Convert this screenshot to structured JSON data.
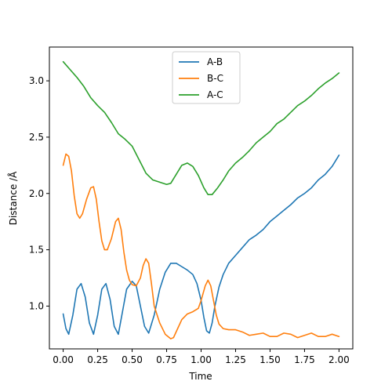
{
  "chart_data": {
    "type": "line",
    "title": "",
    "xlabel": "Time",
    "ylabel": "Distance /Å",
    "xlim": [
      -0.1,
      2.1
    ],
    "ylim": [
      0.62,
      3.3
    ],
    "xticks": [
      0.0,
      0.25,
      0.5,
      0.75,
      1.0,
      1.25,
      1.5,
      1.75,
      2.0
    ],
    "xtick_labels": [
      "0.00",
      "0.25",
      "0.50",
      "0.75",
      "1.00",
      "1.25",
      "1.50",
      "1.75",
      "2.00"
    ],
    "yticks": [
      1.0,
      1.5,
      2.0,
      2.5,
      3.0
    ],
    "ytick_labels": [
      "1.0",
      "1.5",
      "2.0",
      "2.5",
      "3.0"
    ],
    "grid": false,
    "legend": {
      "placement": "upper-center"
    },
    "series": [
      {
        "name": "A-B",
        "color": "#1f77b4",
        "points": [
          [
            0.0,
            0.93
          ],
          [
            0.02,
            0.8
          ],
          [
            0.04,
            0.75
          ],
          [
            0.07,
            0.92
          ],
          [
            0.1,
            1.15
          ],
          [
            0.13,
            1.2
          ],
          [
            0.16,
            1.08
          ],
          [
            0.19,
            0.85
          ],
          [
            0.22,
            0.75
          ],
          [
            0.25,
            0.92
          ],
          [
            0.28,
            1.15
          ],
          [
            0.31,
            1.2
          ],
          [
            0.34,
            1.06
          ],
          [
            0.37,
            0.82
          ],
          [
            0.4,
            0.75
          ],
          [
            0.43,
            0.95
          ],
          [
            0.46,
            1.15
          ],
          [
            0.5,
            1.22
          ],
          [
            0.53,
            1.18
          ],
          [
            0.56,
            1.0
          ],
          [
            0.59,
            0.82
          ],
          [
            0.62,
            0.76
          ],
          [
            0.66,
            0.92
          ],
          [
            0.7,
            1.15
          ],
          [
            0.74,
            1.3
          ],
          [
            0.78,
            1.38
          ],
          [
            0.82,
            1.38
          ],
          [
            0.86,
            1.35
          ],
          [
            0.9,
            1.32
          ],
          [
            0.94,
            1.28
          ],
          [
            0.97,
            1.2
          ],
          [
            1.0,
            1.05
          ],
          [
            1.02,
            0.9
          ],
          [
            1.04,
            0.78
          ],
          [
            1.06,
            0.76
          ],
          [
            1.08,
            0.85
          ],
          [
            1.1,
            1.0
          ],
          [
            1.13,
            1.17
          ],
          [
            1.16,
            1.28
          ],
          [
            1.2,
            1.38
          ],
          [
            1.25,
            1.45
          ],
          [
            1.3,
            1.52
          ],
          [
            1.35,
            1.59
          ],
          [
            1.4,
            1.63
          ],
          [
            1.45,
            1.68
          ],
          [
            1.5,
            1.75
          ],
          [
            1.55,
            1.8
          ],
          [
            1.6,
            1.85
          ],
          [
            1.65,
            1.9
          ],
          [
            1.7,
            1.96
          ],
          [
            1.75,
            2.0
          ],
          [
            1.8,
            2.05
          ],
          [
            1.85,
            2.12
          ],
          [
            1.9,
            2.17
          ],
          [
            1.95,
            2.24
          ],
          [
            2.0,
            2.34
          ]
        ]
      },
      {
        "name": "B-C",
        "color": "#ff7f0e",
        "points": [
          [
            0.0,
            2.25
          ],
          [
            0.02,
            2.35
          ],
          [
            0.04,
            2.33
          ],
          [
            0.06,
            2.2
          ],
          [
            0.08,
            1.98
          ],
          [
            0.1,
            1.82
          ],
          [
            0.12,
            1.78
          ],
          [
            0.14,
            1.82
          ],
          [
            0.17,
            1.95
          ],
          [
            0.2,
            2.05
          ],
          [
            0.22,
            2.06
          ],
          [
            0.24,
            1.95
          ],
          [
            0.26,
            1.75
          ],
          [
            0.28,
            1.58
          ],
          [
            0.3,
            1.5
          ],
          [
            0.32,
            1.5
          ],
          [
            0.35,
            1.6
          ],
          [
            0.38,
            1.75
          ],
          [
            0.4,
            1.78
          ],
          [
            0.42,
            1.68
          ],
          [
            0.44,
            1.48
          ],
          [
            0.46,
            1.32
          ],
          [
            0.48,
            1.23
          ],
          [
            0.5,
            1.19
          ],
          [
            0.53,
            1.18
          ],
          [
            0.56,
            1.25
          ],
          [
            0.58,
            1.36
          ],
          [
            0.6,
            1.42
          ],
          [
            0.62,
            1.38
          ],
          [
            0.64,
            1.2
          ],
          [
            0.66,
            1.0
          ],
          [
            0.7,
            0.85
          ],
          [
            0.74,
            0.75
          ],
          [
            0.78,
            0.71
          ],
          [
            0.8,
            0.72
          ],
          [
            0.83,
            0.8
          ],
          [
            0.86,
            0.88
          ],
          [
            0.9,
            0.93
          ],
          [
            0.94,
            0.95
          ],
          [
            0.98,
            0.98
          ],
          [
            1.0,
            1.05
          ],
          [
            1.03,
            1.18
          ],
          [
            1.05,
            1.23
          ],
          [
            1.07,
            1.18
          ],
          [
            1.09,
            1.05
          ],
          [
            1.11,
            0.92
          ],
          [
            1.13,
            0.84
          ],
          [
            1.16,
            0.8
          ],
          [
            1.2,
            0.79
          ],
          [
            1.25,
            0.79
          ],
          [
            1.3,
            0.77
          ],
          [
            1.35,
            0.74
          ],
          [
            1.4,
            0.75
          ],
          [
            1.45,
            0.76
          ],
          [
            1.5,
            0.73
          ],
          [
            1.55,
            0.73
          ],
          [
            1.6,
            0.76
          ],
          [
            1.65,
            0.75
          ],
          [
            1.7,
            0.72
          ],
          [
            1.75,
            0.74
          ],
          [
            1.8,
            0.76
          ],
          [
            1.85,
            0.73
          ],
          [
            1.9,
            0.73
          ],
          [
            1.95,
            0.75
          ],
          [
            2.0,
            0.73
          ]
        ]
      },
      {
        "name": "A-C",
        "color": "#2ca02c",
        "points": [
          [
            0.0,
            3.17
          ],
          [
            0.05,
            3.1
          ],
          [
            0.1,
            3.03
          ],
          [
            0.15,
            2.95
          ],
          [
            0.2,
            2.85
          ],
          [
            0.25,
            2.78
          ],
          [
            0.3,
            2.72
          ],
          [
            0.35,
            2.63
          ],
          [
            0.4,
            2.53
          ],
          [
            0.45,
            2.48
          ],
          [
            0.5,
            2.42
          ],
          [
            0.55,
            2.3
          ],
          [
            0.6,
            2.18
          ],
          [
            0.65,
            2.12
          ],
          [
            0.7,
            2.1
          ],
          [
            0.75,
            2.08
          ],
          [
            0.78,
            2.09
          ],
          [
            0.82,
            2.17
          ],
          [
            0.86,
            2.25
          ],
          [
            0.9,
            2.27
          ],
          [
            0.94,
            2.24
          ],
          [
            0.98,
            2.16
          ],
          [
            1.02,
            2.05
          ],
          [
            1.05,
            1.99
          ],
          [
            1.08,
            1.99
          ],
          [
            1.12,
            2.05
          ],
          [
            1.16,
            2.12
          ],
          [
            1.2,
            2.2
          ],
          [
            1.25,
            2.27
          ],
          [
            1.3,
            2.32
          ],
          [
            1.35,
            2.38
          ],
          [
            1.4,
            2.45
          ],
          [
            1.45,
            2.5
          ],
          [
            1.5,
            2.55
          ],
          [
            1.55,
            2.62
          ],
          [
            1.6,
            2.66
          ],
          [
            1.65,
            2.72
          ],
          [
            1.7,
            2.78
          ],
          [
            1.75,
            2.82
          ],
          [
            1.8,
            2.87
          ],
          [
            1.85,
            2.93
          ],
          [
            1.9,
            2.98
          ],
          [
            1.95,
            3.02
          ],
          [
            2.0,
            3.07
          ]
        ]
      }
    ]
  }
}
